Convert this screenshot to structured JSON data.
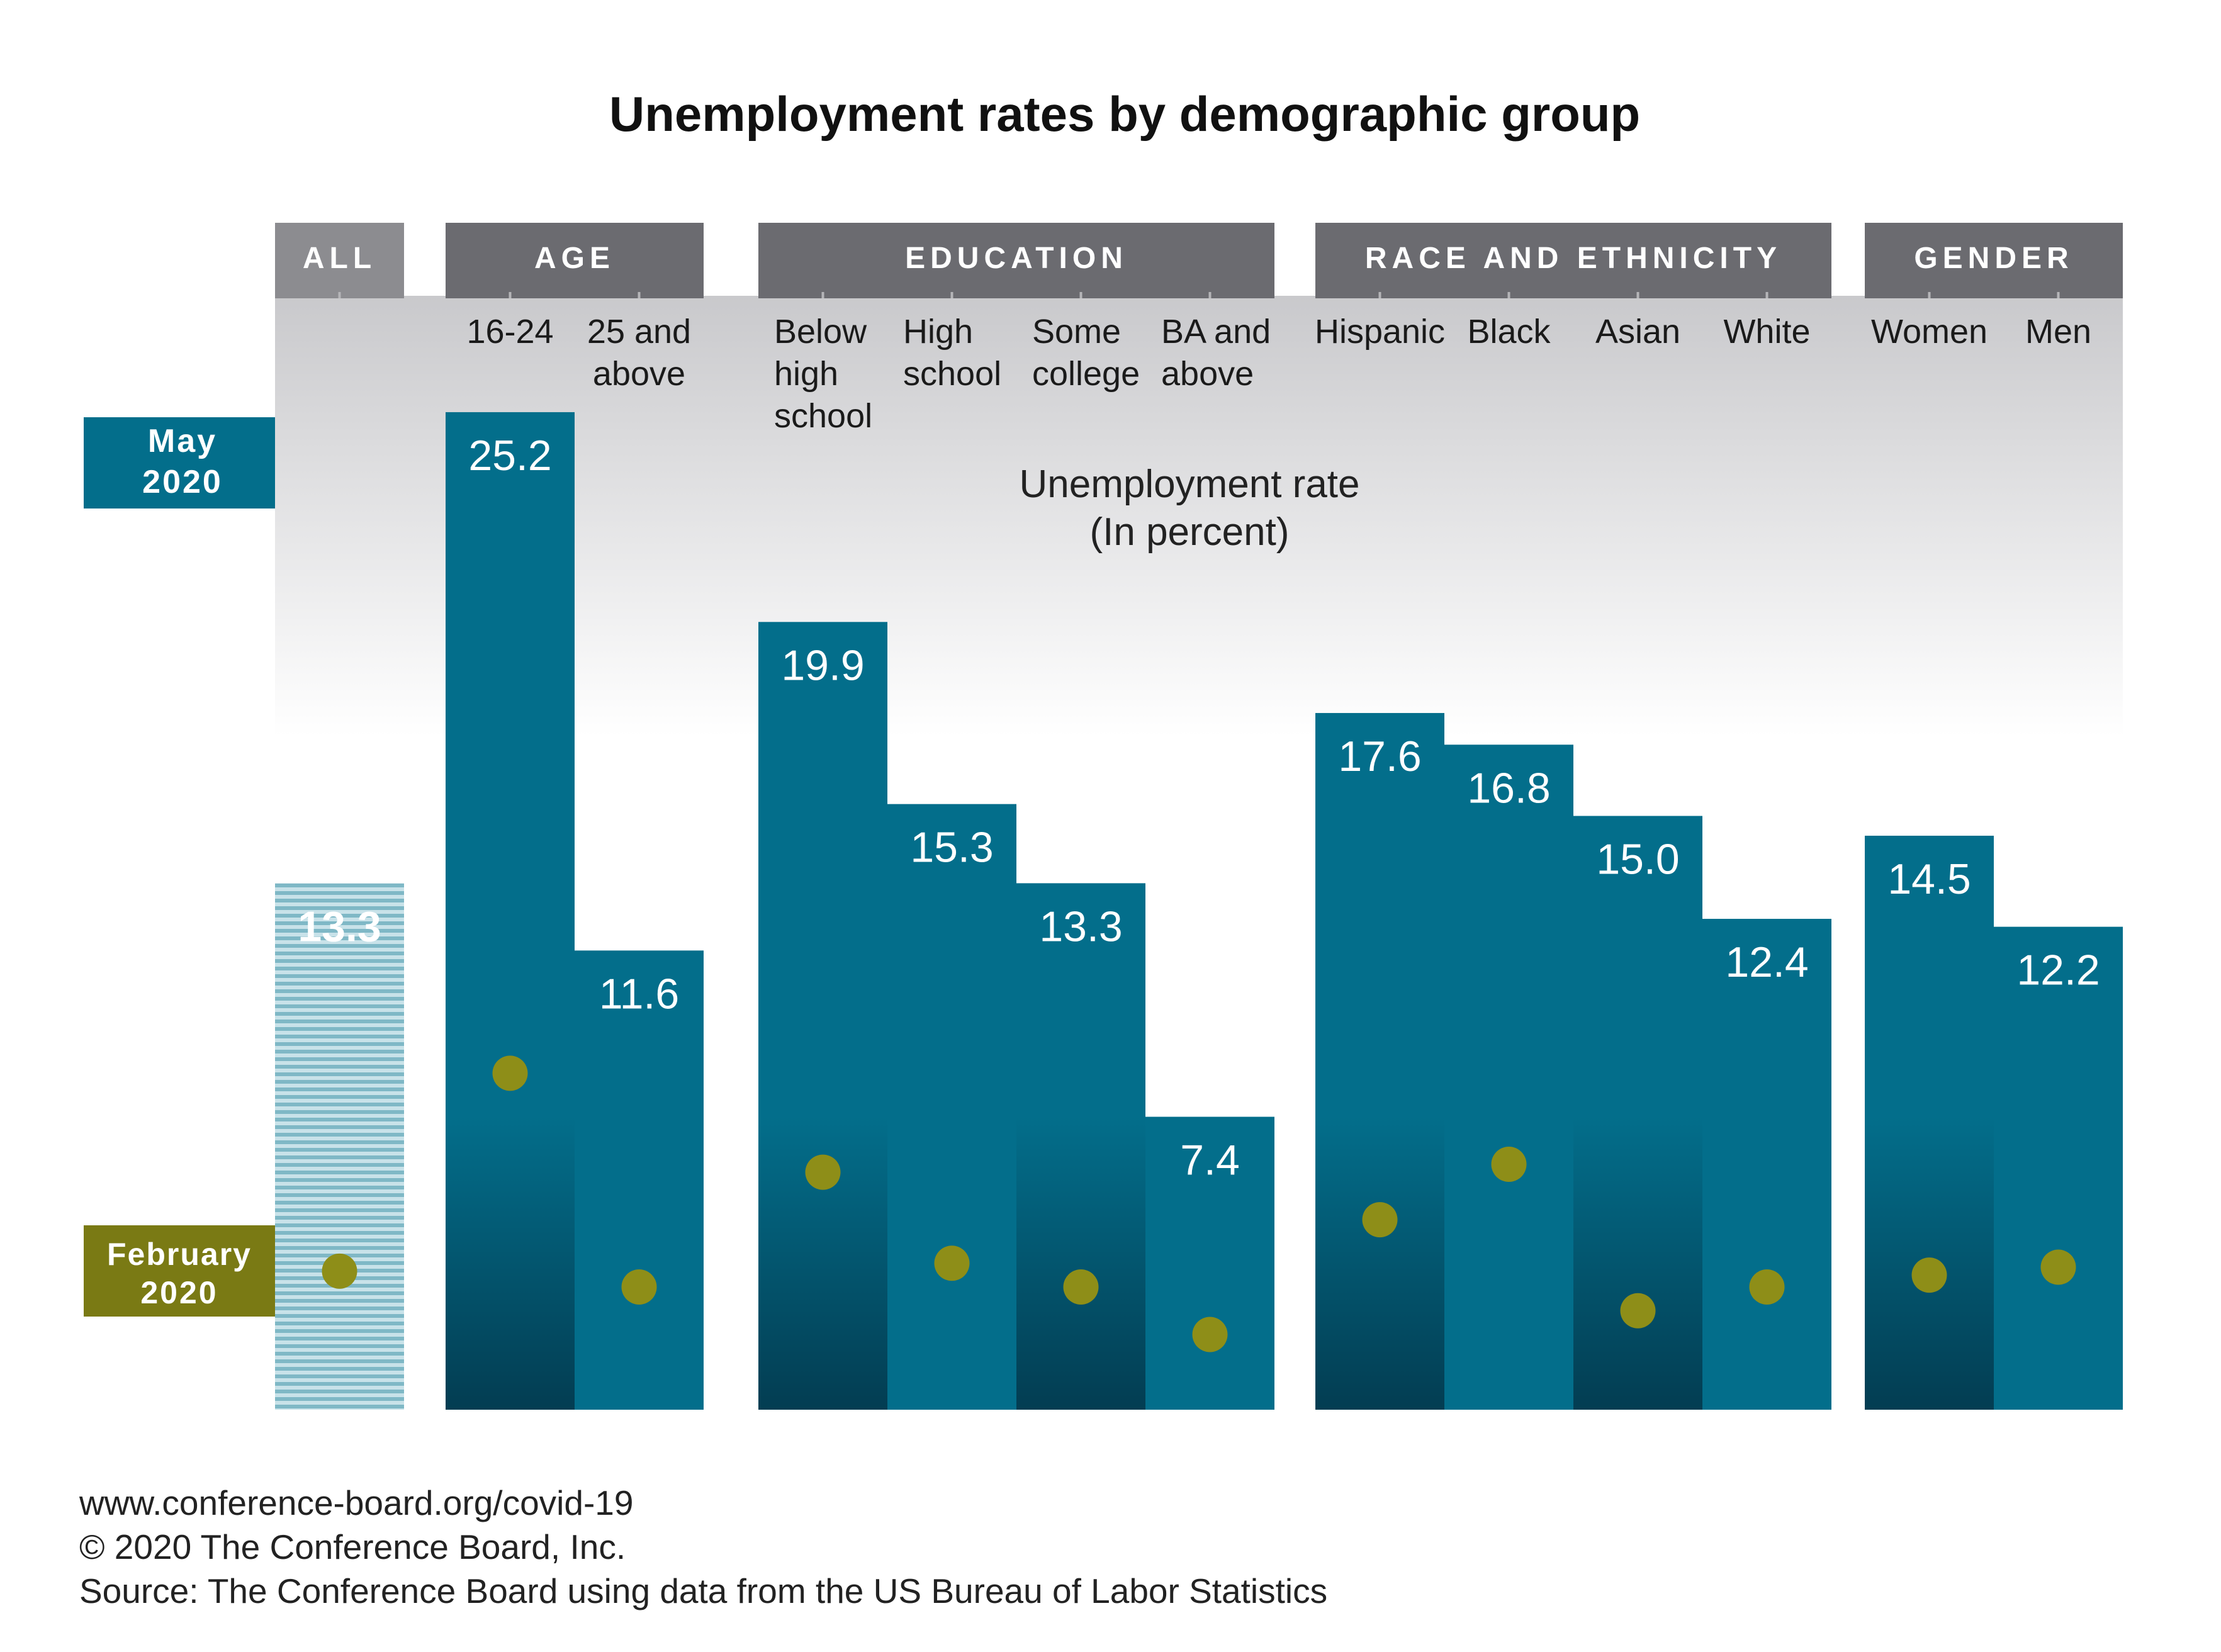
{
  "title": "Unemployment rates by demographic group",
  "y_axis_title": [
    "Unemployment rate",
    "(In percent)"
  ],
  "legend": {
    "may": [
      "May",
      "2020"
    ],
    "february": [
      "February",
      "2020"
    ]
  },
  "footer": [
    "www.conference-board.org/covid-19",
    "© 2020 The Conference Board, Inc.",
    "Source: The Conference Board using data from the US Bureau of Labor Statistics"
  ],
  "colors": {
    "may_bar": "#036E8B",
    "may_bar_dark": "#033D52",
    "february_dot": "#8E8E18",
    "group_header": "#6B6B70",
    "all_header": "#8C8C90",
    "legend_may": "#036E8B",
    "legend_february": "#7A7A14",
    "all_bar_stripe": "#7FB8C6"
  },
  "chart_data": {
    "type": "bar",
    "title": "Unemployment rates by demographic group",
    "ylabel": "Unemployment rate (In percent)",
    "ylim": [
      0,
      30
    ],
    "groups": [
      {
        "name": "ALL",
        "categories": [
          {
            "label": [
              ""
            ],
            "may": 13.3,
            "february": 3.5
          }
        ]
      },
      {
        "name": "AGE",
        "categories": [
          {
            "label": [
              "16-24"
            ],
            "may": 25.2,
            "february": 8.5
          },
          {
            "label": [
              "25 and",
              "above"
            ],
            "may": 11.6,
            "february": 3.1
          }
        ]
      },
      {
        "name": "EDUCATION",
        "categories": [
          {
            "label": [
              "Below",
              "high",
              "school"
            ],
            "may": 19.9,
            "february": 6.0
          },
          {
            "label": [
              "High",
              "school"
            ],
            "may": 15.3,
            "february": 3.7
          },
          {
            "label": [
              "Some",
              "college"
            ],
            "may": 13.3,
            "february": 3.1
          },
          {
            "label": [
              "BA and",
              "above"
            ],
            "may": 7.4,
            "february": 1.9
          }
        ]
      },
      {
        "name": "RACE AND ETHNICITY",
        "categories": [
          {
            "label": [
              "Hispanic"
            ],
            "may": 17.6,
            "february": 4.8
          },
          {
            "label": [
              "Black"
            ],
            "may": 16.8,
            "february": 6.2
          },
          {
            "label": [
              "Asian"
            ],
            "may": 15.0,
            "february": 2.5
          },
          {
            "label": [
              "White"
            ],
            "may": 12.4,
            "february": 3.1
          }
        ]
      },
      {
        "name": "GENDER",
        "categories": [
          {
            "label": [
              "Women"
            ],
            "may": 14.5,
            "february": 3.4
          },
          {
            "label": [
              "Men"
            ],
            "may": 12.2,
            "february": 3.6
          }
        ]
      }
    ],
    "series": [
      {
        "name": "May 2020",
        "mark": "bar"
      },
      {
        "name": "February 2020",
        "mark": "dot"
      }
    ]
  }
}
